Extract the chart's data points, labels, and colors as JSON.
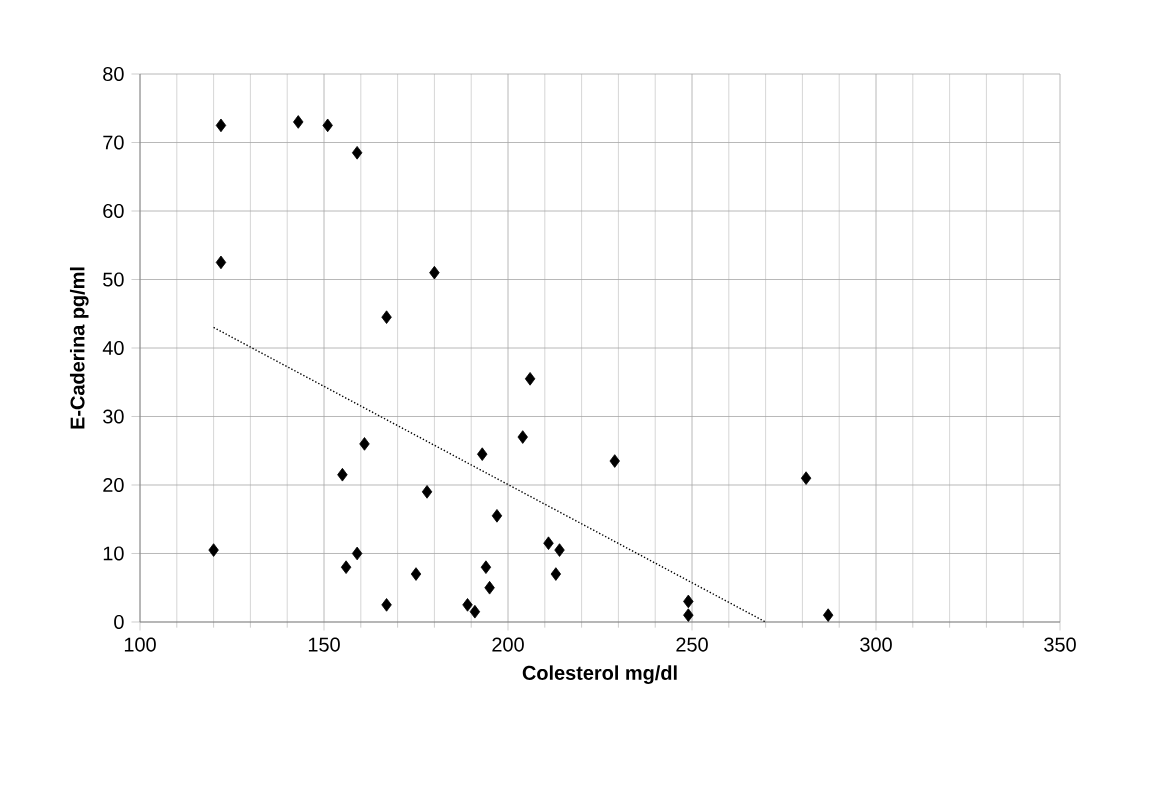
{
  "chart_data": {
    "type": "scatter",
    "xlabel": "Colesterol mg/dl",
    "ylabel": "E-Caderina pg/ml",
    "xlim": [
      100,
      350
    ],
    "ylim": [
      0,
      80
    ],
    "xticks": [
      100,
      150,
      200,
      250,
      300,
      350
    ],
    "yticks": [
      0,
      10,
      20,
      30,
      40,
      50,
      60,
      70,
      80
    ],
    "grid": true,
    "series": [
      {
        "color": "#000000",
        "marker": "diamond",
        "x": [
          120,
          122,
          122,
          143,
          151,
          159,
          155,
          161,
          156,
          159,
          167,
          180,
          167,
          175,
          178,
          189,
          191,
          193,
          194,
          195,
          197,
          204,
          206,
          211,
          213,
          214,
          229,
          249,
          249,
          281,
          287
        ],
        "values": [
          10.5,
          72.5,
          52.5,
          73,
          72.5,
          68.5,
          21.5,
          26,
          8,
          10,
          44.5,
          51,
          2.5,
          7,
          19,
          2.5,
          1.5,
          24.5,
          8,
          5,
          15.5,
          27,
          35.5,
          11.5,
          7,
          10.5,
          23.5,
          3,
          1,
          21,
          1
        ]
      },
      {
        "type": "line",
        "color": "#000000",
        "line_style": "dotted",
        "marker": "none",
        "x": [
          120,
          270
        ],
        "values": [
          43,
          0
        ]
      }
    ]
  }
}
